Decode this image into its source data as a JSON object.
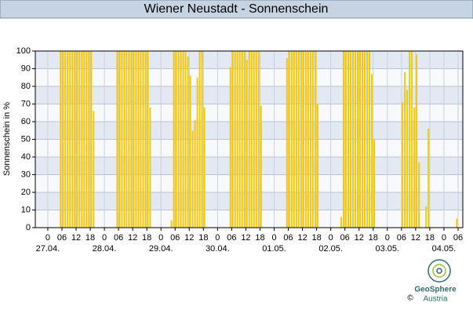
{
  "chart_data": {
    "type": "bar",
    "title": "Wiener Neustadt - Sonnenschein",
    "y_label": "Sonnenschein in %",
    "color": "#f5c800",
    "grid": true,
    "xlim": [
      -5.3,
      176
    ],
    "ylim": [
      0,
      100
    ],
    "yticks": [
      0,
      10,
      20,
      30,
      40,
      50,
      60,
      70,
      80,
      90,
      100
    ],
    "xticks": [
      0,
      {
        "value": 6,
        "label": "06"
      },
      12,
      18,
      {
        "value": 24,
        "label": "0"
      },
      {
        "value": 30,
        "label": "06"
      },
      {
        "value": 36,
        "label": "12"
      },
      {
        "value": 42,
        "label": "18"
      },
      {
        "value": 48,
        "label": "0"
      },
      {
        "value": 54,
        "label": "06"
      },
      {
        "value": 60,
        "label": "12"
      },
      {
        "value": 66,
        "label": "18"
      },
      {
        "value": 72,
        "label": "0"
      },
      {
        "value": 78,
        "label": "06"
      },
      {
        "value": 84,
        "label": "12"
      },
      {
        "value": 90,
        "label": "18"
      },
      {
        "value": 96,
        "label": "0"
      },
      {
        "value": 102,
        "label": "06"
      },
      {
        "value": 108,
        "label": "12"
      },
      {
        "value": 114,
        "label": "18"
      },
      {
        "value": 120,
        "label": "0"
      },
      {
        "value": 126,
        "label": "06"
      },
      {
        "value": 132,
        "label": "12"
      },
      {
        "value": 138,
        "label": "18"
      },
      {
        "value": 144,
        "label": "0"
      },
      {
        "value": 150,
        "label": "06"
      },
      {
        "value": 156,
        "label": "12"
      },
      {
        "value": 162,
        "label": "18"
      },
      {
        "value": 168,
        "label": "0"
      },
      {
        "value": 174,
        "label": "06"
      }
    ],
    "date_ticks": [
      {
        "value": 0,
        "label": "27.04."
      },
      {
        "value": 24,
        "label": "28.04."
      },
      {
        "value": 48,
        "label": "29.04."
      },
      {
        "value": 72,
        "label": "30.04."
      },
      {
        "value": 96,
        "label": "01.05."
      },
      {
        "value": 120,
        "label": "02.05."
      },
      {
        "value": 144,
        "label": "03.05."
      },
      {
        "value": 168,
        "label": "04.05."
      }
    ],
    "x": [
      5,
      6,
      7,
      8,
      9,
      10,
      11,
      12,
      13,
      14,
      15,
      16,
      17,
      18,
      19,
      29,
      30,
      31,
      32,
      33,
      34,
      35,
      36,
      37,
      38,
      39,
      40,
      41,
      42,
      43,
      52,
      53,
      54,
      55,
      56,
      57,
      58,
      59,
      60,
      61,
      62,
      63,
      64,
      65,
      66,
      77,
      78,
      79,
      80,
      81,
      82,
      83,
      84,
      85,
      86,
      87,
      88,
      89,
      90,
      101,
      102,
      103,
      104,
      105,
      106,
      107,
      108,
      109,
      110,
      111,
      112,
      113,
      114,
      124,
      125,
      126,
      127,
      128,
      129,
      130,
      131,
      132,
      133,
      134,
      135,
      136,
      137,
      138,
      150,
      151,
      152,
      153,
      154,
      155,
      156,
      157,
      160,
      161,
      173
    ],
    "values": [
      100,
      100,
      100,
      100,
      100,
      100,
      100,
      100,
      100,
      100,
      100,
      100,
      100,
      100,
      66,
      100,
      100,
      100,
      100,
      100,
      100,
      100,
      100,
      100,
      100,
      100,
      100,
      100,
      100,
      68,
      4,
      100,
      100,
      100,
      100,
      100,
      100,
      97,
      86,
      55,
      61,
      85,
      100,
      100,
      68,
      91,
      100,
      100,
      100,
      100,
      100,
      100,
      95,
      100,
      100,
      100,
      100,
      100,
      69,
      96,
      100,
      100,
      100,
      100,
      100,
      100,
      100,
      100,
      100,
      100,
      100,
      100,
      70,
      6,
      100,
      100,
      100,
      100,
      100,
      100,
      100,
      100,
      100,
      100,
      100,
      100,
      87,
      50,
      71,
      88,
      78,
      100,
      100,
      68,
      98,
      37,
      12,
      56,
      5
    ]
  },
  "logo": {
    "name": "GeoSphere",
    "country": "Austria",
    "copyright": "©"
  }
}
